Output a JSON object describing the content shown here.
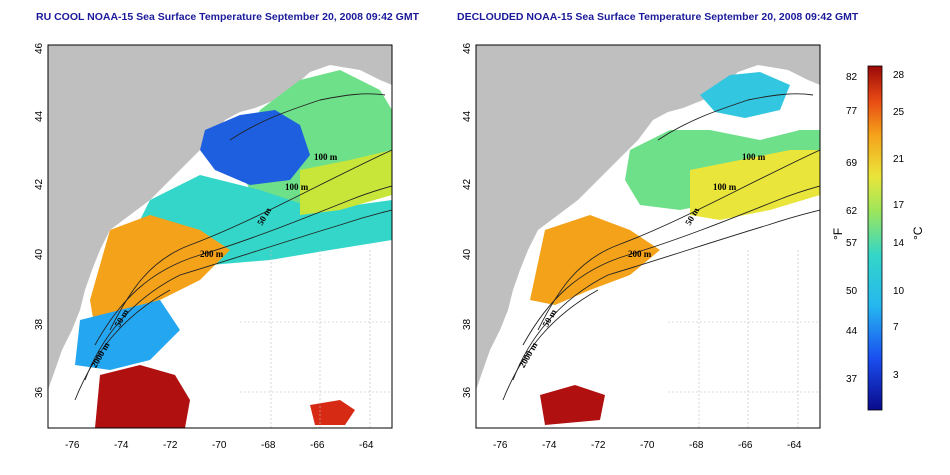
{
  "panels": [
    {
      "title": "RU COOL NOAA-15 Sea Surface Temperature September 20, 2008 09:42 GMT"
    },
    {
      "title": "DECLOUDED NOAA-15 Sea Surface Temperature September 20, 2008 09:42 GMT"
    }
  ],
  "axes": {
    "lon_ticks": [
      "-76",
      "-74",
      "-72",
      "-70",
      "-68",
      "-66",
      "-64"
    ],
    "lat_ticks": [
      "36",
      "38",
      "40",
      "42",
      "44",
      "46"
    ]
  },
  "contours": [
    "100 m",
    "100 m",
    "50 m",
    "200 m",
    "50 m",
    "2000 m"
  ],
  "colorbar": {
    "f_label": "°F",
    "c_label": "°C",
    "f_ticks": [
      "82",
      "77",
      "69",
      "62",
      "57",
      "50",
      "44",
      "37"
    ],
    "c_ticks": [
      "28",
      "25",
      "21",
      "17",
      "14",
      "10",
      "7",
      "3"
    ]
  },
  "colors": {
    "land": "#bfbfbf",
    "cold": "#1a2a9a",
    "cool": "#1e8ef0",
    "mid": "#33d6c8",
    "warm": "#c8e63a",
    "hot": "#f4a21a",
    "hottest": "#b01010"
  }
}
